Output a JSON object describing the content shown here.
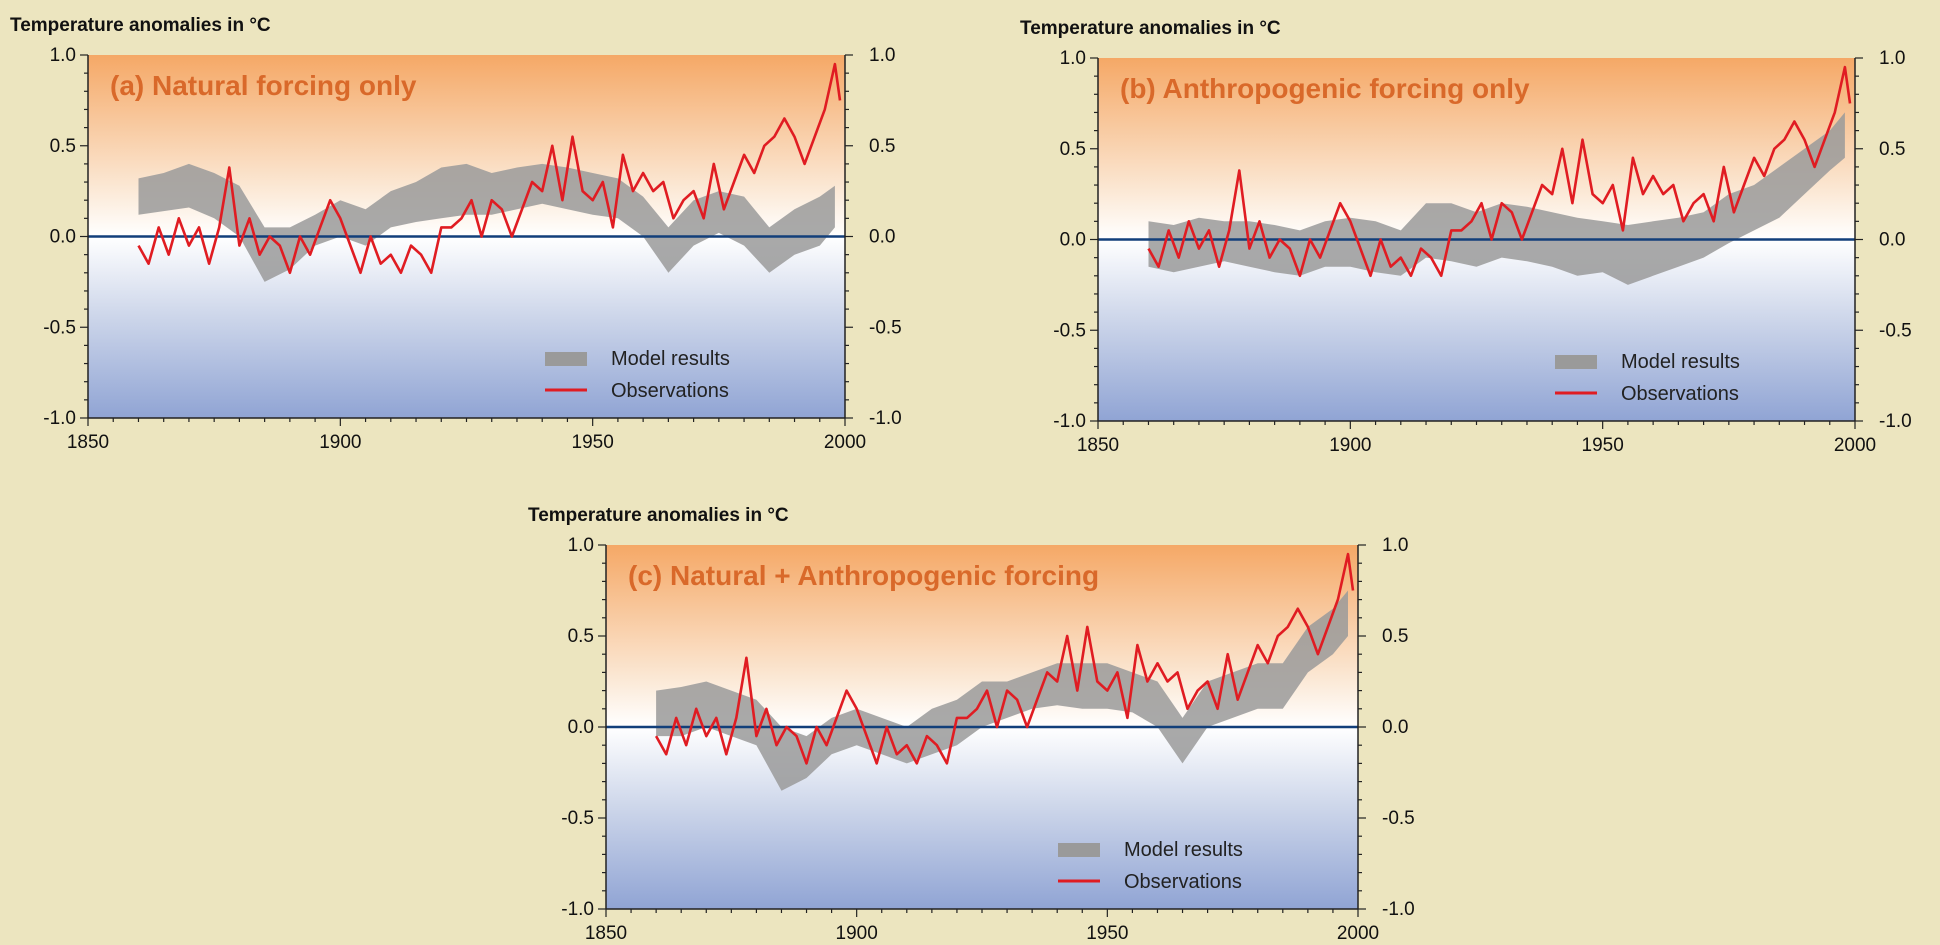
{
  "chart_data": [
    {
      "type": "line",
      "title": "(a) Natural forcing only",
      "ylabel": "Temperature anomalies in °C",
      "xlim": [
        1850,
        2000
      ],
      "ylim": [
        -1.0,
        1.0
      ],
      "x_ticks": [
        "1850",
        "1900",
        "1950",
        "2000"
      ],
      "y_ticks": [
        "1.0",
        "0.5",
        "0.0",
        "-0.5",
        "-1.0"
      ],
      "legend": [
        "Model results",
        "Observations"
      ],
      "legend_position": "bottom-right",
      "series": [
        {
          "name": "Model results",
          "kind": "band",
          "color": "#9a9a9a",
          "x": [
            1860,
            1865,
            1870,
            1875,
            1880,
            1885,
            1890,
            1895,
            1900,
            1905,
            1910,
            1915,
            1920,
            1925,
            1930,
            1935,
            1940,
            1945,
            1950,
            1955,
            1960,
            1965,
            1970,
            1975,
            1980,
            1985,
            1990,
            1995,
            1998
          ],
          "low": [
            0.12,
            0.14,
            0.16,
            0.1,
            0.0,
            -0.25,
            -0.18,
            -0.05,
            0.0,
            -0.05,
            0.05,
            0.08,
            0.1,
            0.12,
            0.12,
            0.15,
            0.18,
            0.15,
            0.12,
            0.1,
            0.0,
            -0.2,
            -0.05,
            0.02,
            -0.05,
            -0.2,
            -0.1,
            -0.05,
            0.05
          ],
          "high": [
            0.32,
            0.35,
            0.4,
            0.35,
            0.28,
            0.05,
            0.05,
            0.12,
            0.2,
            0.15,
            0.25,
            0.3,
            0.38,
            0.4,
            0.35,
            0.38,
            0.4,
            0.38,
            0.35,
            0.32,
            0.22,
            0.05,
            0.2,
            0.25,
            0.22,
            0.05,
            0.15,
            0.22,
            0.28
          ]
        },
        {
          "name": "Observations",
          "kind": "line",
          "color": "#e01c22",
          "x": [
            1860,
            1862,
            1864,
            1866,
            1868,
            1870,
            1872,
            1874,
            1876,
            1878,
            1880,
            1882,
            1884,
            1886,
            1888,
            1890,
            1892,
            1894,
            1896,
            1898,
            1900,
            1902,
            1904,
            1906,
            1908,
            1910,
            1912,
            1914,
            1916,
            1918,
            1920,
            1922,
            1924,
            1926,
            1928,
            1930,
            1932,
            1934,
            1936,
            1938,
            1940,
            1942,
            1944,
            1946,
            1948,
            1950,
            1952,
            1954,
            1956,
            1958,
            1960,
            1962,
            1964,
            1966,
            1968,
            1970,
            1972,
            1974,
            1976,
            1978,
            1980,
            1982,
            1984,
            1986,
            1988,
            1990,
            1992,
            1994,
            1996,
            1998,
            1999
          ],
          "y": [
            -0.05,
            -0.15,
            0.05,
            -0.1,
            0.1,
            -0.05,
            0.05,
            -0.15,
            0.05,
            0.38,
            -0.05,
            0.1,
            -0.1,
            0.0,
            -0.05,
            -0.2,
            0.0,
            -0.1,
            0.05,
            0.2,
            0.1,
            -0.05,
            -0.2,
            0.0,
            -0.15,
            -0.1,
            -0.2,
            -0.05,
            -0.1,
            -0.2,
            0.05,
            0.05,
            0.1,
            0.2,
            0.0,
            0.2,
            0.15,
            0.0,
            0.15,
            0.3,
            0.25,
            0.5,
            0.2,
            0.55,
            0.25,
            0.2,
            0.3,
            0.05,
            0.45,
            0.25,
            0.35,
            0.25,
            0.3,
            0.1,
            0.2,
            0.25,
            0.1,
            0.4,
            0.15,
            0.3,
            0.45,
            0.35,
            0.5,
            0.55,
            0.65,
            0.55,
            0.4,
            0.55,
            0.7,
            0.95,
            0.75
          ]
        }
      ]
    },
    {
      "type": "line",
      "title": "(b) Anthropogenic forcing only",
      "ylabel": "Temperature anomalies in °C",
      "xlim": [
        1850,
        2000
      ],
      "ylim": [
        -1.0,
        1.0
      ],
      "x_ticks": [
        "1850",
        "1900",
        "1950",
        "2000"
      ],
      "y_ticks": [
        "1.0",
        "0.5",
        "0.0",
        "-0.5",
        "-1.0"
      ],
      "legend": [
        "Model results",
        "Observations"
      ],
      "legend_position": "bottom-right",
      "series": [
        {
          "name": "Model results",
          "kind": "band",
          "color": "#9a9a9a",
          "x": [
            1860,
            1865,
            1870,
            1875,
            1880,
            1885,
            1890,
            1895,
            1900,
            1905,
            1910,
            1915,
            1920,
            1925,
            1930,
            1935,
            1940,
            1945,
            1950,
            1955,
            1960,
            1965,
            1970,
            1975,
            1980,
            1985,
            1990,
            1995,
            1998
          ],
          "low": [
            -0.15,
            -0.18,
            -0.15,
            -0.12,
            -0.15,
            -0.18,
            -0.2,
            -0.15,
            -0.15,
            -0.18,
            -0.2,
            -0.1,
            -0.12,
            -0.15,
            -0.1,
            -0.12,
            -0.15,
            -0.2,
            -0.18,
            -0.25,
            -0.2,
            -0.15,
            -0.1,
            -0.02,
            0.05,
            0.12,
            0.25,
            0.38,
            0.45
          ],
          "high": [
            0.1,
            0.08,
            0.12,
            0.1,
            0.1,
            0.08,
            0.05,
            0.1,
            0.12,
            0.1,
            0.05,
            0.2,
            0.2,
            0.15,
            0.2,
            0.18,
            0.15,
            0.12,
            0.1,
            0.08,
            0.1,
            0.12,
            0.15,
            0.25,
            0.3,
            0.4,
            0.5,
            0.6,
            0.7
          ]
        },
        {
          "name": "Observations",
          "kind": "line",
          "color": "#e01c22",
          "x": [
            1860,
            1862,
            1864,
            1866,
            1868,
            1870,
            1872,
            1874,
            1876,
            1878,
            1880,
            1882,
            1884,
            1886,
            1888,
            1890,
            1892,
            1894,
            1896,
            1898,
            1900,
            1902,
            1904,
            1906,
            1908,
            1910,
            1912,
            1914,
            1916,
            1918,
            1920,
            1922,
            1924,
            1926,
            1928,
            1930,
            1932,
            1934,
            1936,
            1938,
            1940,
            1942,
            1944,
            1946,
            1948,
            1950,
            1952,
            1954,
            1956,
            1958,
            1960,
            1962,
            1964,
            1966,
            1968,
            1970,
            1972,
            1974,
            1976,
            1978,
            1980,
            1982,
            1984,
            1986,
            1988,
            1990,
            1992,
            1994,
            1996,
            1998,
            1999
          ],
          "y": [
            -0.05,
            -0.15,
            0.05,
            -0.1,
            0.1,
            -0.05,
            0.05,
            -0.15,
            0.05,
            0.38,
            -0.05,
            0.1,
            -0.1,
            0.0,
            -0.05,
            -0.2,
            0.0,
            -0.1,
            0.05,
            0.2,
            0.1,
            -0.05,
            -0.2,
            0.0,
            -0.15,
            -0.1,
            -0.2,
            -0.05,
            -0.1,
            -0.2,
            0.05,
            0.05,
            0.1,
            0.2,
            0.0,
            0.2,
            0.15,
            0.0,
            0.15,
            0.3,
            0.25,
            0.5,
            0.2,
            0.55,
            0.25,
            0.2,
            0.3,
            0.05,
            0.45,
            0.25,
            0.35,
            0.25,
            0.3,
            0.1,
            0.2,
            0.25,
            0.1,
            0.4,
            0.15,
            0.3,
            0.45,
            0.35,
            0.5,
            0.55,
            0.65,
            0.55,
            0.4,
            0.55,
            0.7,
            0.95,
            0.75
          ]
        }
      ]
    },
    {
      "type": "line",
      "title": "(c) Natural + Anthropogenic forcing",
      "ylabel": "Temperature anomalies in °C",
      "xlim": [
        1850,
        2000
      ],
      "ylim": [
        -1.0,
        1.0
      ],
      "x_ticks": [
        "1850",
        "1900",
        "1950",
        "2000"
      ],
      "y_ticks": [
        "1.0",
        "0.5",
        "0.0",
        "-0.5",
        "-1.0"
      ],
      "legend": [
        "Model results",
        "Observations"
      ],
      "legend_position": "bottom-right",
      "series": [
        {
          "name": "Model results",
          "kind": "band",
          "color": "#9a9a9a",
          "x": [
            1860,
            1865,
            1870,
            1875,
            1880,
            1885,
            1890,
            1895,
            1900,
            1905,
            1910,
            1915,
            1920,
            1925,
            1930,
            1935,
            1940,
            1945,
            1950,
            1955,
            1960,
            1965,
            1970,
            1975,
            1980,
            1985,
            1990,
            1995,
            1998
          ],
          "low": [
            -0.05,
            -0.05,
            0.0,
            -0.05,
            -0.1,
            -0.35,
            -0.28,
            -0.15,
            -0.1,
            -0.15,
            -0.2,
            -0.15,
            -0.1,
            0.0,
            0.05,
            0.1,
            0.12,
            0.1,
            0.1,
            0.08,
            0.0,
            -0.2,
            0.0,
            0.05,
            0.1,
            0.1,
            0.3,
            0.4,
            0.5
          ],
          "high": [
            0.2,
            0.22,
            0.25,
            0.2,
            0.15,
            0.0,
            -0.05,
            0.05,
            0.1,
            0.05,
            0.0,
            0.1,
            0.15,
            0.25,
            0.25,
            0.3,
            0.35,
            0.35,
            0.35,
            0.3,
            0.25,
            0.05,
            0.25,
            0.3,
            0.35,
            0.35,
            0.55,
            0.65,
            0.75
          ]
        },
        {
          "name": "Observations",
          "kind": "line",
          "color": "#e01c22",
          "x": [
            1860,
            1862,
            1864,
            1866,
            1868,
            1870,
            1872,
            1874,
            1876,
            1878,
            1880,
            1882,
            1884,
            1886,
            1888,
            1890,
            1892,
            1894,
            1896,
            1898,
            1900,
            1902,
            1904,
            1906,
            1908,
            1910,
            1912,
            1914,
            1916,
            1918,
            1920,
            1922,
            1924,
            1926,
            1928,
            1930,
            1932,
            1934,
            1936,
            1938,
            1940,
            1942,
            1944,
            1946,
            1948,
            1950,
            1952,
            1954,
            1956,
            1958,
            1960,
            1962,
            1964,
            1966,
            1968,
            1970,
            1972,
            1974,
            1976,
            1978,
            1980,
            1982,
            1984,
            1986,
            1988,
            1990,
            1992,
            1994,
            1996,
            1998,
            1999
          ],
          "y": [
            -0.05,
            -0.15,
            0.05,
            -0.1,
            0.1,
            -0.05,
            0.05,
            -0.15,
            0.05,
            0.38,
            -0.05,
            0.1,
            -0.1,
            0.0,
            -0.05,
            -0.2,
            0.0,
            -0.1,
            0.05,
            0.2,
            0.1,
            -0.05,
            -0.2,
            0.0,
            -0.15,
            -0.1,
            -0.2,
            -0.05,
            -0.1,
            -0.2,
            0.05,
            0.05,
            0.1,
            0.2,
            0.0,
            0.2,
            0.15,
            0.0,
            0.15,
            0.3,
            0.25,
            0.5,
            0.2,
            0.55,
            0.25,
            0.2,
            0.3,
            0.05,
            0.45,
            0.25,
            0.35,
            0.25,
            0.3,
            0.1,
            0.2,
            0.25,
            0.1,
            0.4,
            0.15,
            0.3,
            0.45,
            0.35,
            0.5,
            0.55,
            0.65,
            0.55,
            0.4,
            0.55,
            0.7,
            0.95,
            0.75
          ]
        }
      ]
    }
  ]
}
